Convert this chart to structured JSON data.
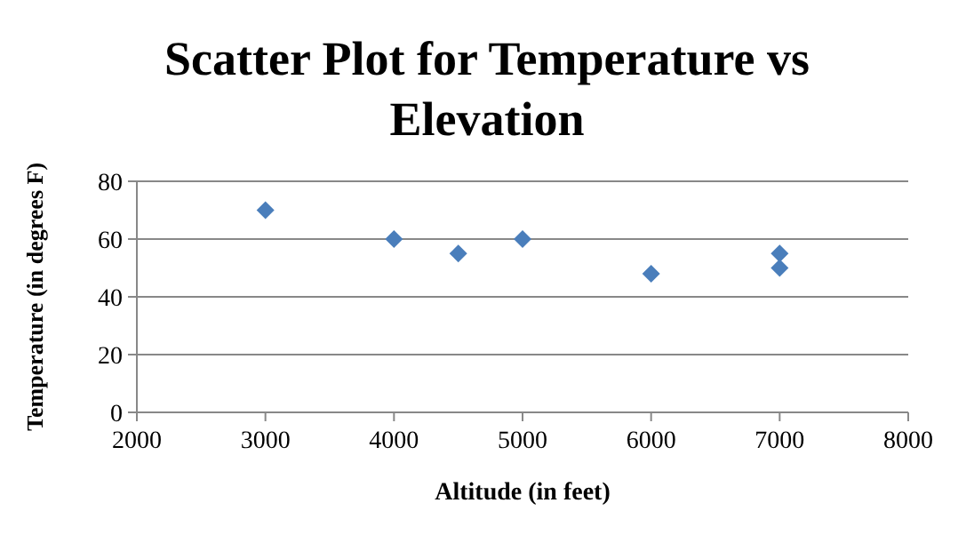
{
  "chart_data": {
    "type": "scatter",
    "title": "Scatter Plot for Temperature vs Elevation",
    "xlabel": "Altitude (in feet)",
    "ylabel": "Temperature (in degrees F)",
    "x": [
      3000,
      4000,
      4500,
      5000,
      6000,
      7000,
      7000
    ],
    "values": [
      70,
      60,
      55,
      60,
      48,
      55,
      50
    ],
    "color": "#4a7ebb",
    "marker": "diamond",
    "grid": "y",
    "xlim": [
      2000,
      8000
    ],
    "xticks": [
      2000,
      3000,
      4000,
      5000,
      6000,
      7000,
      8000
    ],
    "ylim": [
      0,
      80
    ],
    "yticks": [
      0,
      20,
      40,
      60,
      80
    ]
  }
}
